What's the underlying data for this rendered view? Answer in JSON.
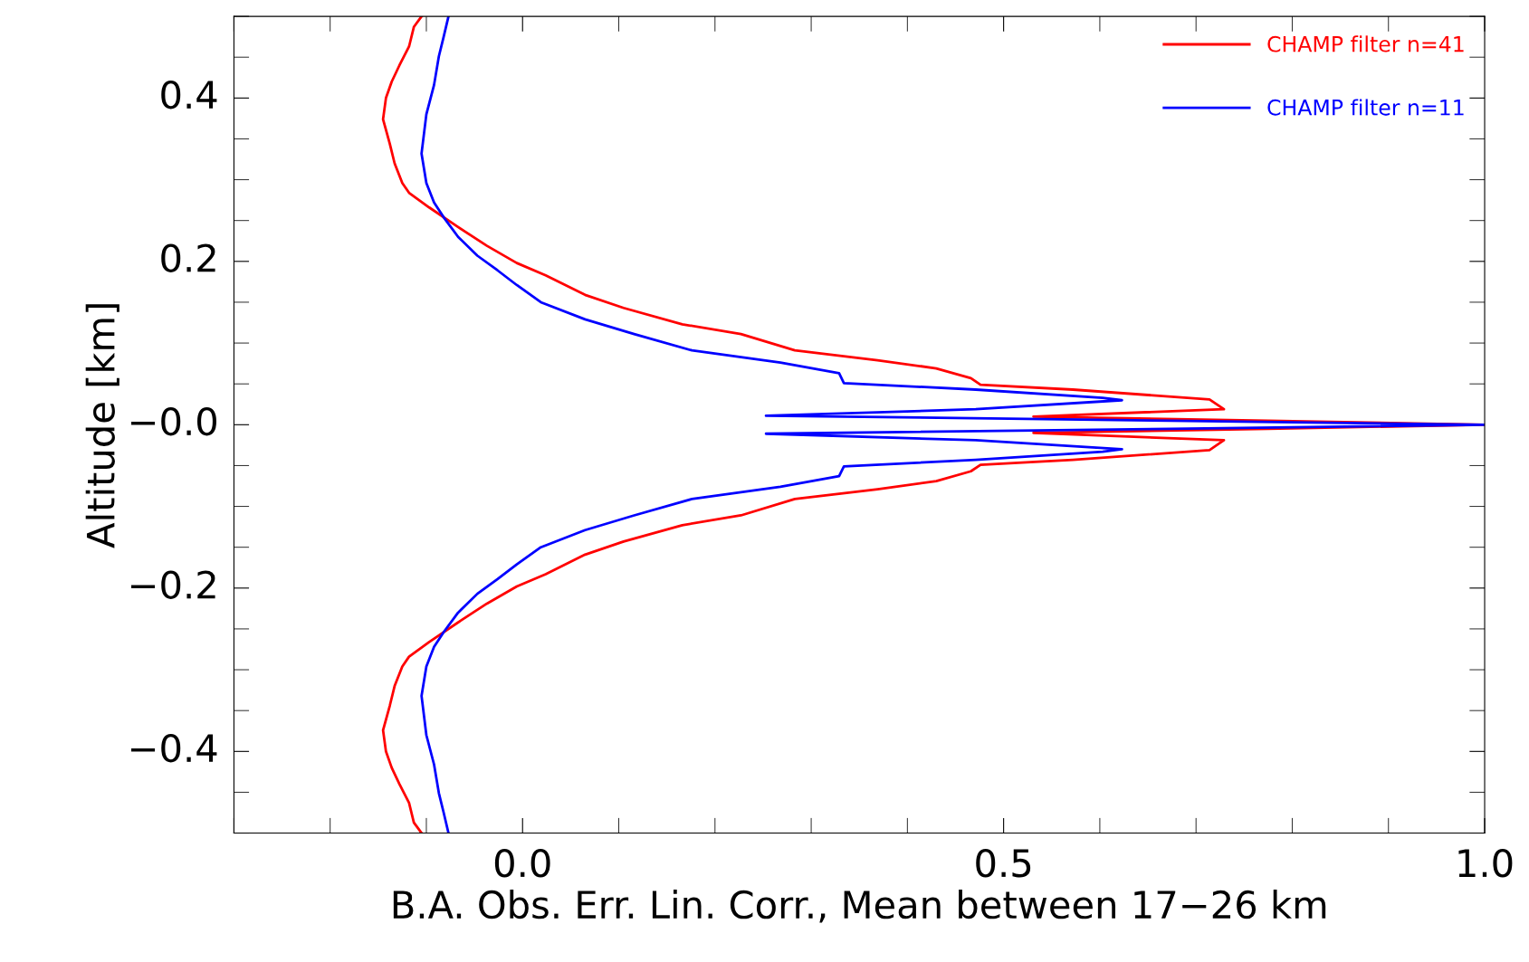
{
  "chart_data": {
    "type": "line",
    "xlabel": "B.A. Obs. Err. Lin. Corr., Mean between 17−26 km",
    "ylabel": "Altitude [km]",
    "xlim": [
      -0.3,
      1.0
    ],
    "ylim": [
      -0.5,
      0.5
    ],
    "xticks": [
      {
        "value": 0,
        "label": "0.0"
      },
      0.5,
      {
        "value": 1,
        "label": "1.0"
      }
    ],
    "yticks": [
      {
        "value": -0.4,
        "label": "−0.4"
      },
      {
        "value": -0.2,
        "label": "−0.2"
      },
      {
        "value": 0,
        "label": "−0.0"
      },
      0.2,
      0.4
    ],
    "grid": false,
    "legend": "top right",
    "marker": "none",
    "line_style": "solid",
    "series": [
      {
        "name": "CHAMP filter n=41",
        "color": "#ff0000",
        "x": [
          -0.105,
          -0.113,
          -0.118,
          -0.128,
          -0.136,
          -0.142,
          -0.145,
          -0.138,
          -0.133,
          -0.125,
          -0.118,
          -0.097,
          -0.067,
          -0.037,
          -0.006,
          0.024,
          0.065,
          0.105,
          0.166,
          0.227,
          0.283,
          0.369,
          0.43,
          0.466,
          0.476,
          0.572,
          0.714,
          0.729,
          0.531,
          0.775,
          1.0,
          0.775,
          0.531,
          0.729,
          0.714,
          0.572,
          0.476,
          0.466,
          0.43,
          0.369,
          0.283,
          0.227,
          0.166,
          0.105,
          0.065,
          0.024,
          -0.006,
          -0.037,
          -0.067,
          -0.097,
          -0.118,
          -0.125,
          -0.133,
          -0.138,
          -0.145,
          -0.142,
          -0.136,
          -0.128,
          -0.118,
          -0.113,
          -0.105
        ],
        "values": [
          0.5,
          0.487,
          0.463,
          0.44,
          0.42,
          0.4,
          0.374,
          0.344,
          0.32,
          0.296,
          0.284,
          0.266,
          0.242,
          0.219,
          0.198,
          0.183,
          0.159,
          0.143,
          0.123,
          0.111,
          0.091,
          0.079,
          0.069,
          0.057,
          0.049,
          0.043,
          0.031,
          0.019,
          0.01,
          0.005,
          0.0,
          -0.005,
          -0.01,
          -0.019,
          -0.031,
          -0.043,
          -0.049,
          -0.057,
          -0.069,
          -0.079,
          -0.091,
          -0.111,
          -0.123,
          -0.143,
          -0.159,
          -0.183,
          -0.198,
          -0.219,
          -0.242,
          -0.266,
          -0.284,
          -0.296,
          -0.32,
          -0.344,
          -0.374,
          -0.4,
          -0.42,
          -0.44,
          -0.463,
          -0.487,
          -0.5
        ]
      },
      {
        "name": "CHAMP filter n=11",
        "color": "#0000ff",
        "x": [
          -0.077,
          -0.082,
          -0.087,
          -0.092,
          -0.1,
          -0.105,
          -0.1,
          -0.092,
          -0.082,
          -0.067,
          -0.047,
          -0.026,
          -0.006,
          0.019,
          0.065,
          0.116,
          0.176,
          0.268,
          0.329,
          0.334,
          0.471,
          0.603,
          0.623,
          0.471,
          0.253,
          0.673,
          1.0,
          0.673,
          0.253,
          0.471,
          0.623,
          0.603,
          0.471,
          0.334,
          0.329,
          0.268,
          0.176,
          0.116,
          0.065,
          0.019,
          -0.006,
          -0.026,
          -0.047,
          -0.067,
          -0.082,
          -0.092,
          -0.1,
          -0.105,
          -0.1,
          -0.092,
          -0.087,
          -0.082,
          -0.077
        ],
        "values": [
          0.5,
          0.475,
          0.451,
          0.416,
          0.38,
          0.332,
          0.296,
          0.272,
          0.254,
          0.23,
          0.207,
          0.189,
          0.171,
          0.15,
          0.129,
          0.111,
          0.091,
          0.076,
          0.063,
          0.051,
          0.043,
          0.033,
          0.03,
          0.019,
          0.011,
          0.005,
          0.0,
          -0.005,
          -0.011,
          -0.019,
          -0.03,
          -0.033,
          -0.043,
          -0.051,
          -0.063,
          -0.076,
          -0.091,
          -0.111,
          -0.129,
          -0.15,
          -0.171,
          -0.189,
          -0.207,
          -0.23,
          -0.254,
          -0.272,
          -0.296,
          -0.332,
          -0.38,
          -0.416,
          -0.451,
          -0.475,
          -0.5
        ]
      }
    ]
  }
}
